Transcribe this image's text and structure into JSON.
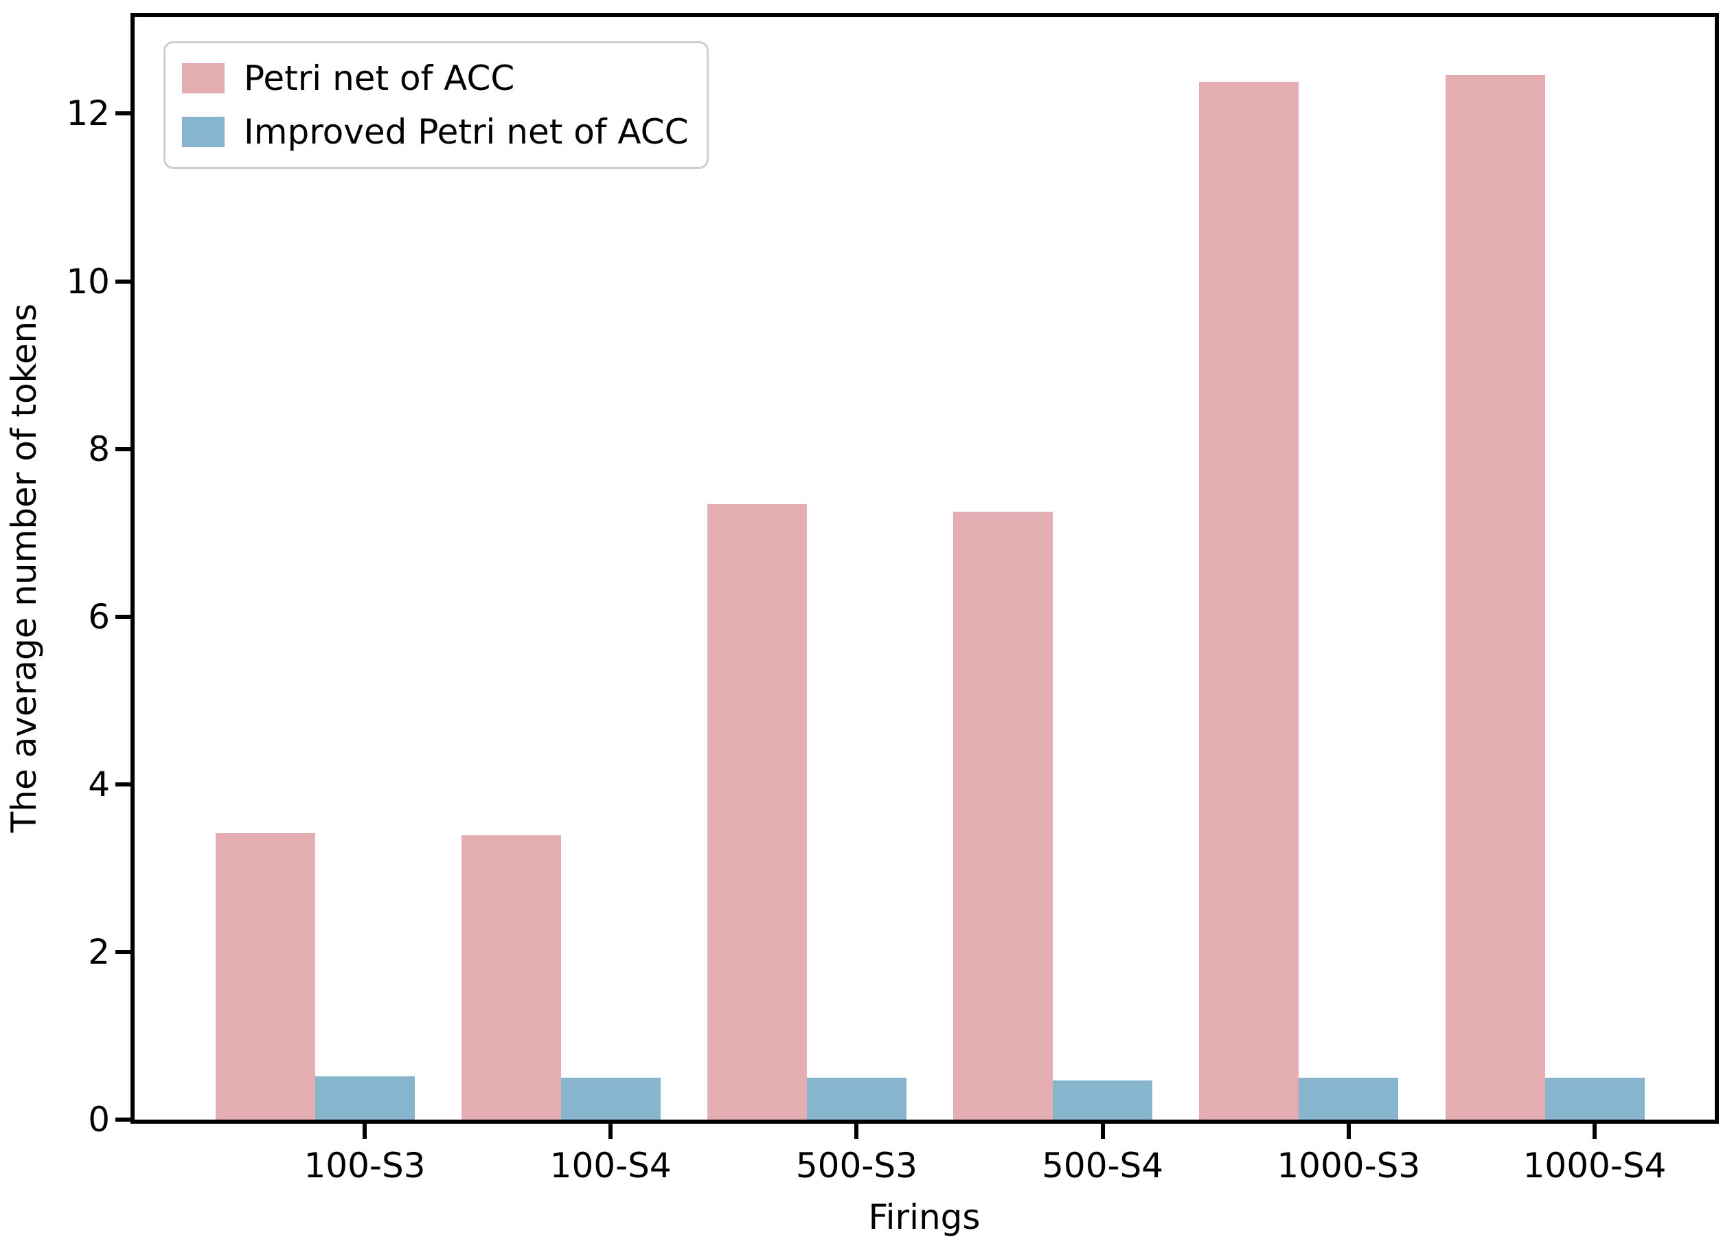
{
  "figure": {
    "background": "#ffffff",
    "axis_color": "#000000",
    "text_color": "#000000",
    "legend_border_color": "#cfcfcf"
  },
  "chart_data": {
    "type": "bar",
    "title": "",
    "xlabel": "Firings",
    "ylabel": "The average number of tokens",
    "categories": [
      "100-S3",
      "100-S4",
      "500-S3",
      "500-S4",
      "1000-S3",
      "1000-S4"
    ],
    "series": [
      {
        "name": "Petri net of ACC",
        "color": "#e4adb1",
        "values": [
          3.42,
          3.39,
          7.34,
          7.25,
          12.38,
          12.46
        ]
      },
      {
        "name": "Improved Petri net of ACC",
        "color": "#87b5cd",
        "values": [
          0.52,
          0.5,
          0.5,
          0.47,
          0.5,
          0.5
        ]
      }
    ],
    "ylim": [
      0,
      13.15
    ],
    "yticks": [
      0,
      2,
      4,
      6,
      8,
      10,
      12
    ],
    "grid": false,
    "legend": {
      "position": "upper-left",
      "entries": [
        "Petri net of ACC",
        "Improved Petri net of ACC"
      ]
    }
  }
}
